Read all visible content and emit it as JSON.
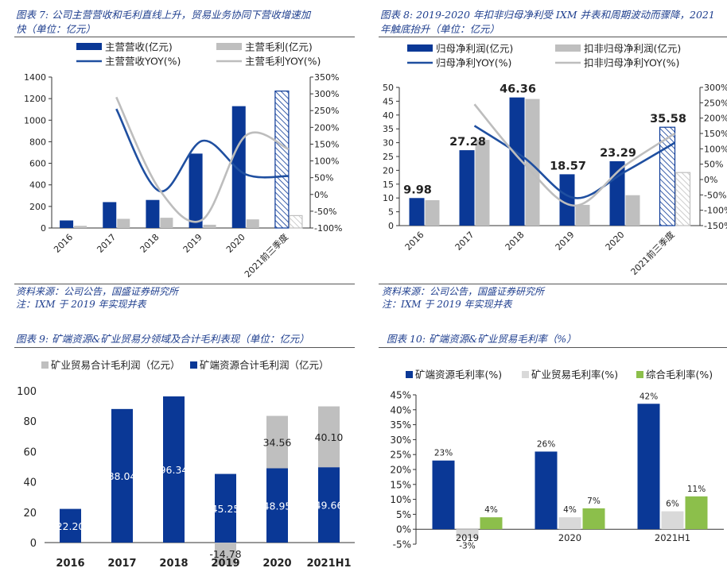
{
  "colors": {
    "blue": "#0a3896",
    "gray": "#bfbfbf",
    "lightgray": "#d9d9d9",
    "green": "#8cbf4b",
    "lineblue": "#1f4fa0",
    "linegray": "#bdbdbd",
    "titleblue": "#1f3f8f"
  },
  "panels": {
    "p7": {
      "title_line1": "图表 7:  公司主营营收和毛利直线上升，贸易业务协同下营收增速加",
      "title_line2": "快（单位：亿元）"
    },
    "p8": {
      "title_line1": "图表 8:  2019-2020 年扣非归母净利受 IXM 并表和周期波动而骤降，2021",
      "title_line2": "年触底抬升（单位：亿元）"
    },
    "p9": {
      "title": "图表 9:  矿端资源&矿业贸易分领域及合计毛利表现（单位：亿元）"
    },
    "p10": {
      "title": "图表 10:  矿端资源&矿业贸易毛利率（%）"
    }
  },
  "notes": {
    "left_source": "资料来源：公司公告，国盛证券研究所",
    "left_note": "注：IXM 于 2019 年实现并表",
    "right_source": "资料来源：公司公告，国盛证券研究所",
    "right_note": "注：IXM 于 2019 年实现并表"
  },
  "chart_data": [
    {
      "type": "bar",
      "id": "chart7",
      "categories": [
        "2016",
        "2017",
        "2018",
        "2019",
        "2020",
        "2021前三季度"
      ],
      "series": [
        {
          "name": "主营营收(亿元)",
          "values": [
            70,
            240,
            260,
            690,
            1130,
            1270
          ],
          "axis": "left"
        },
        {
          "name": "主营毛利(亿元)",
          "values": [
            20,
            85,
            95,
            30,
            80,
            115
          ],
          "axis": "left"
        },
        {
          "name": "主营营收YOY(%)",
          "type": "line",
          "values": [
            null,
            255,
            10,
            160,
            60,
            55
          ],
          "axis": "right"
        },
        {
          "name": "主营毛利YOY(%)",
          "type": "line",
          "values": [
            null,
            290,
            15,
            -75,
            175,
            135
          ],
          "axis": "right"
        }
      ],
      "ylim": [
        0,
        1400
      ],
      "yticks": [
        0,
        200,
        400,
        600,
        800,
        1000,
        1200,
        1400
      ],
      "y2lim": [
        -100,
        350
      ],
      "y2ticks": [
        "-100%",
        "-50%",
        "0%",
        "50%",
        "100%",
        "150%",
        "200%",
        "250%",
        "300%",
        "350%"
      ],
      "legend": "top"
    },
    {
      "type": "bar",
      "id": "chart8",
      "categories": [
        "2016",
        "2017",
        "2018",
        "2019",
        "2020",
        "2021前三季度"
      ],
      "series": [
        {
          "name": "归母净利润(亿元)",
          "values": [
            9.98,
            27.28,
            46.36,
            18.57,
            23.29,
            35.58
          ],
          "axis": "left"
        },
        {
          "name": "扣非归母净利润(亿元)",
          "values": [
            9.2,
            31.0,
            45.8,
            7.5,
            11.0,
            19.2
          ],
          "axis": "left"
        },
        {
          "name": "归母净利YOY(%)",
          "type": "line",
          "values": [
            null,
            175,
            70,
            -60,
            25,
            120
          ],
          "axis": "right"
        },
        {
          "name": "扣非归母净利YOY(%)",
          "type": "line",
          "values": [
            null,
            245,
            50,
            -85,
            45,
            150
          ],
          "axis": "right"
        }
      ],
      "data_labels": [
        "9.98",
        "27.28",
        "46.36",
        "18.57",
        "23.29",
        "35.58"
      ],
      "ylim": [
        0,
        50
      ],
      "yticks": [
        0,
        5,
        10,
        15,
        20,
        25,
        30,
        35,
        40,
        45,
        50
      ],
      "y2lim": [
        -150,
        300
      ],
      "y2ticks": [
        "-150%",
        "-100%",
        "-50%",
        "0%",
        "50%",
        "100%",
        "150%",
        "200%",
        "250%",
        "300%"
      ],
      "legend": "top"
    },
    {
      "type": "bar",
      "id": "chart9",
      "stacked": true,
      "categories": [
        "2016",
        "2017",
        "2018",
        "2019",
        "2020",
        "2021H1"
      ],
      "series": [
        {
          "name": "矿端资源合计毛利润（亿元）",
          "values": [
            22.2,
            88.04,
            96.34,
            45.25,
            48.95,
            49.66
          ],
          "labels": [
            "22.20",
            "88.04",
            "96.34",
            "45.25",
            "48.95",
            "49.66"
          ]
        },
        {
          "name": "矿业贸易合计毛利润（亿元）",
          "values": [
            null,
            null,
            null,
            -14.78,
            34.56,
            40.1
          ],
          "labels": [
            "",
            "",
            "",
            "-14.78",
            "34.56",
            "40.10"
          ]
        }
      ],
      "ylim": [
        -15,
        100
      ],
      "yticks": [
        0,
        20,
        40,
        60,
        80,
        100
      ],
      "legend": "top"
    },
    {
      "type": "bar",
      "id": "chart10",
      "categories": [
        "2019",
        "2020",
        "2021H1"
      ],
      "series": [
        {
          "name": "矿端资源毛利率(%)",
          "values": [
            23,
            26,
            42
          ],
          "labels": [
            "23%",
            "26%",
            "42%"
          ]
        },
        {
          "name": "矿业贸易毛利率(%)",
          "values": [
            -3,
            4,
            6
          ],
          "labels": [
            "-3%",
            "4%",
            "6%"
          ]
        },
        {
          "name": "综合毛利率(%)",
          "values": [
            4,
            7,
            11
          ],
          "labels": [
            "4%",
            "7%",
            "11%"
          ]
        }
      ],
      "ylim": [
        -5,
        45
      ],
      "yticks": [
        "-5%",
        "0%",
        "5%",
        "10%",
        "15%",
        "20%",
        "25%",
        "30%",
        "35%",
        "40%",
        "45%"
      ],
      "legend": "top"
    }
  ]
}
